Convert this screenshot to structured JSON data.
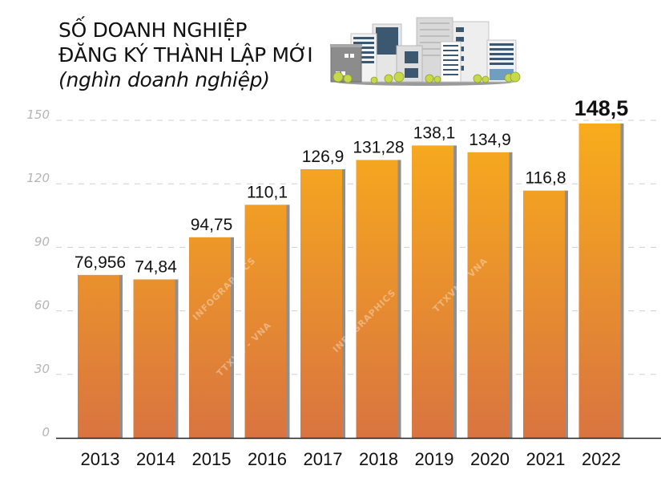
{
  "header": {
    "title_line1": "SỐ DOANH NGHIỆP",
    "title_line2": "ĐĂNG KÝ THÀNH LẬP MỚI",
    "subtitle": "(nghìn doanh nghiệp)"
  },
  "illustration": {
    "icon": "city-buildings-icon"
  },
  "watermarks": [
    "INFOGRAPHICS",
    "TTXVN - VNA",
    "INFOGRAPHICS",
    "TTXVN - VNA"
  ],
  "colors": {
    "bar_top": "#f9ad1b",
    "bar_bottom": "#d97440",
    "bar_shadow": "#8f8f8f",
    "grid": "#d0d0d0",
    "axis": "#222222"
  },
  "chart_data": {
    "type": "bar",
    "title": "SỐ DOANH NGHIỆP ĐĂNG KÝ THÀNH LẬP MỚI",
    "subtitle": "(nghìn doanh nghiệp)",
    "xlabel": "",
    "ylabel": "nghìn doanh nghiệp",
    "categories": [
      "2013",
      "2014",
      "2015",
      "2016",
      "2017",
      "2018",
      "2019",
      "2020",
      "2021",
      "2022"
    ],
    "values": [
      76.956,
      74.84,
      94.75,
      110.1,
      126.9,
      131.28,
      138.1,
      134.9,
      116.8,
      148.5
    ],
    "value_labels": [
      "76,956",
      "74,84",
      "94,75",
      "110,1",
      "126,9",
      "131,28",
      "138,1",
      "134,9",
      "116,8",
      "148,5"
    ],
    "highlight_index": 9,
    "ylim": [
      0,
      150
    ],
    "yticks": [
      "0",
      "30",
      "60",
      "90",
      "120",
      "150"
    ],
    "ytick_values": [
      0,
      30,
      60,
      90,
      120,
      150
    ],
    "grid": true,
    "grid_style": "dashed",
    "legend": "none"
  }
}
